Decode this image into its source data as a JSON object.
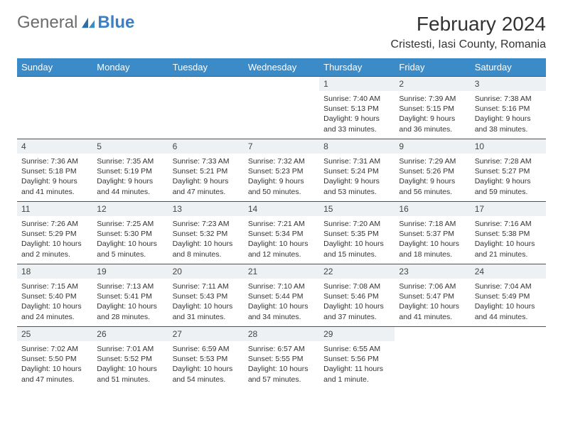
{
  "logo": {
    "text1": "General",
    "text2": "Blue"
  },
  "title": "February 2024",
  "location": "Cristesti, Iasi County, Romania",
  "colors": {
    "header_bg": "#3b8bc9",
    "header_text": "#ffffff",
    "row_divider": "#345a7a",
    "daynum_bg": "#eef1f3",
    "body_text": "#333333",
    "logo_gray": "#6b6b6b",
    "logo_blue": "#3b7fc4"
  },
  "weekdays": [
    "Sunday",
    "Monday",
    "Tuesday",
    "Wednesday",
    "Thursday",
    "Friday",
    "Saturday"
  ],
  "weeks": [
    [
      null,
      null,
      null,
      null,
      {
        "n": "1",
        "sr": "7:40 AM",
        "ss": "5:13 PM",
        "dl": "9 hours and 33 minutes."
      },
      {
        "n": "2",
        "sr": "7:39 AM",
        "ss": "5:15 PM",
        "dl": "9 hours and 36 minutes."
      },
      {
        "n": "3",
        "sr": "7:38 AM",
        "ss": "5:16 PM",
        "dl": "9 hours and 38 minutes."
      }
    ],
    [
      {
        "n": "4",
        "sr": "7:36 AM",
        "ss": "5:18 PM",
        "dl": "9 hours and 41 minutes."
      },
      {
        "n": "5",
        "sr": "7:35 AM",
        "ss": "5:19 PM",
        "dl": "9 hours and 44 minutes."
      },
      {
        "n": "6",
        "sr": "7:33 AM",
        "ss": "5:21 PM",
        "dl": "9 hours and 47 minutes."
      },
      {
        "n": "7",
        "sr": "7:32 AM",
        "ss": "5:23 PM",
        "dl": "9 hours and 50 minutes."
      },
      {
        "n": "8",
        "sr": "7:31 AM",
        "ss": "5:24 PM",
        "dl": "9 hours and 53 minutes."
      },
      {
        "n": "9",
        "sr": "7:29 AM",
        "ss": "5:26 PM",
        "dl": "9 hours and 56 minutes."
      },
      {
        "n": "10",
        "sr": "7:28 AM",
        "ss": "5:27 PM",
        "dl": "9 hours and 59 minutes."
      }
    ],
    [
      {
        "n": "11",
        "sr": "7:26 AM",
        "ss": "5:29 PM",
        "dl": "10 hours and 2 minutes."
      },
      {
        "n": "12",
        "sr": "7:25 AM",
        "ss": "5:30 PM",
        "dl": "10 hours and 5 minutes."
      },
      {
        "n": "13",
        "sr": "7:23 AM",
        "ss": "5:32 PM",
        "dl": "10 hours and 8 minutes."
      },
      {
        "n": "14",
        "sr": "7:21 AM",
        "ss": "5:34 PM",
        "dl": "10 hours and 12 minutes."
      },
      {
        "n": "15",
        "sr": "7:20 AM",
        "ss": "5:35 PM",
        "dl": "10 hours and 15 minutes."
      },
      {
        "n": "16",
        "sr": "7:18 AM",
        "ss": "5:37 PM",
        "dl": "10 hours and 18 minutes."
      },
      {
        "n": "17",
        "sr": "7:16 AM",
        "ss": "5:38 PM",
        "dl": "10 hours and 21 minutes."
      }
    ],
    [
      {
        "n": "18",
        "sr": "7:15 AM",
        "ss": "5:40 PM",
        "dl": "10 hours and 24 minutes."
      },
      {
        "n": "19",
        "sr": "7:13 AM",
        "ss": "5:41 PM",
        "dl": "10 hours and 28 minutes."
      },
      {
        "n": "20",
        "sr": "7:11 AM",
        "ss": "5:43 PM",
        "dl": "10 hours and 31 minutes."
      },
      {
        "n": "21",
        "sr": "7:10 AM",
        "ss": "5:44 PM",
        "dl": "10 hours and 34 minutes."
      },
      {
        "n": "22",
        "sr": "7:08 AM",
        "ss": "5:46 PM",
        "dl": "10 hours and 37 minutes."
      },
      {
        "n": "23",
        "sr": "7:06 AM",
        "ss": "5:47 PM",
        "dl": "10 hours and 41 minutes."
      },
      {
        "n": "24",
        "sr": "7:04 AM",
        "ss": "5:49 PM",
        "dl": "10 hours and 44 minutes."
      }
    ],
    [
      {
        "n": "25",
        "sr": "7:02 AM",
        "ss": "5:50 PM",
        "dl": "10 hours and 47 minutes."
      },
      {
        "n": "26",
        "sr": "7:01 AM",
        "ss": "5:52 PM",
        "dl": "10 hours and 51 minutes."
      },
      {
        "n": "27",
        "sr": "6:59 AM",
        "ss": "5:53 PM",
        "dl": "10 hours and 54 minutes."
      },
      {
        "n": "28",
        "sr": "6:57 AM",
        "ss": "5:55 PM",
        "dl": "10 hours and 57 minutes."
      },
      {
        "n": "29",
        "sr": "6:55 AM",
        "ss": "5:56 PM",
        "dl": "11 hours and 1 minute."
      },
      null,
      null
    ]
  ],
  "labels": {
    "sunrise": "Sunrise:",
    "sunset": "Sunset:",
    "daylight": "Daylight:"
  }
}
